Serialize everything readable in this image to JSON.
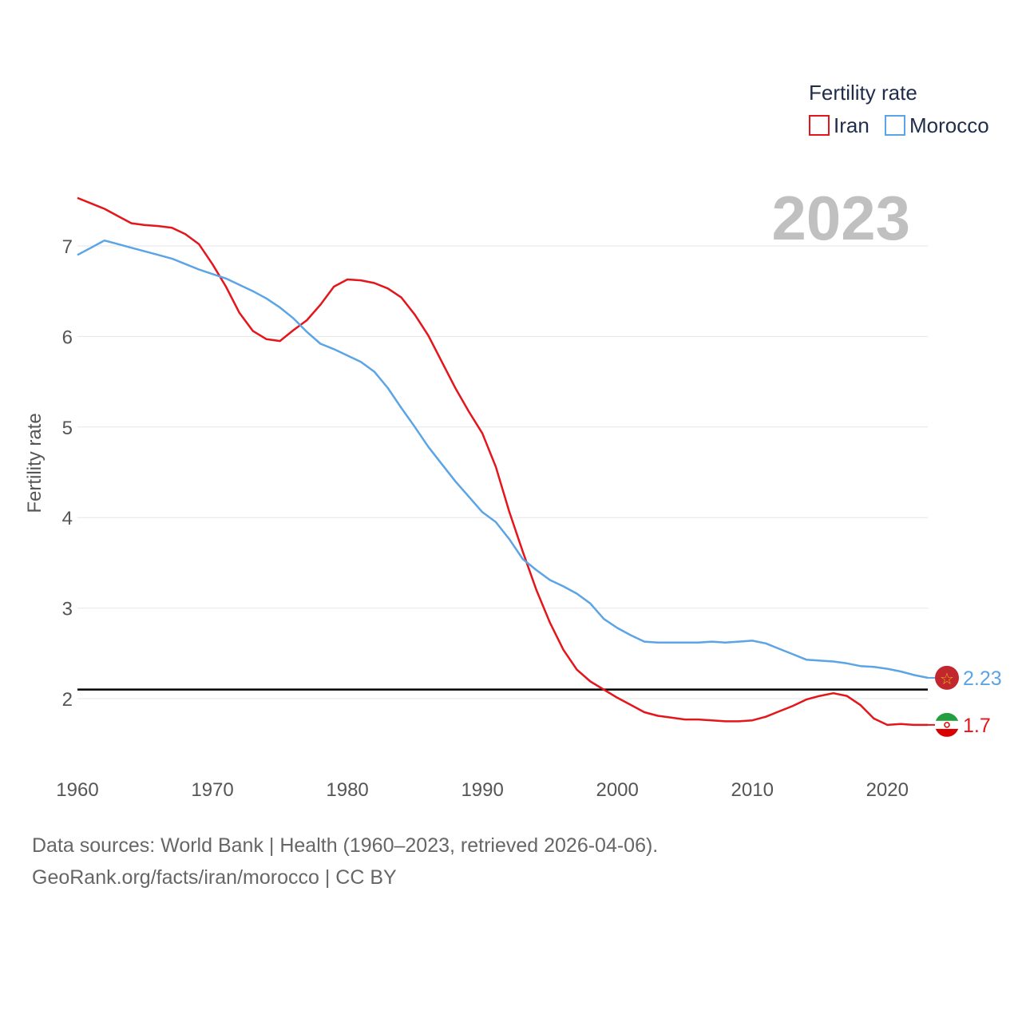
{
  "chart_data": {
    "type": "line",
    "title": "",
    "ylabel": "Fertility rate",
    "xlabel": "",
    "current_year": "2023",
    "xlim": [
      1960,
      2023
    ],
    "ylim": [
      1.3,
      7.6
    ],
    "x_ticks": [
      1960,
      1970,
      1980,
      1990,
      2000,
      2010,
      2020
    ],
    "y_ticks": [
      2,
      3,
      4,
      5,
      6,
      7
    ],
    "reference_line": 2.1,
    "legend": {
      "title": "Fertility rate",
      "position": "top-right"
    },
    "x": [
      1960,
      1961,
      1962,
      1963,
      1964,
      1965,
      1966,
      1967,
      1968,
      1969,
      1970,
      1971,
      1972,
      1973,
      1974,
      1975,
      1976,
      1977,
      1978,
      1979,
      1980,
      1981,
      1982,
      1983,
      1984,
      1985,
      1986,
      1987,
      1988,
      1989,
      1990,
      1991,
      1992,
      1993,
      1994,
      1995,
      1996,
      1997,
      1998,
      1999,
      2000,
      2001,
      2002,
      2003,
      2004,
      2005,
      2006,
      2007,
      2008,
      2009,
      2010,
      2011,
      2012,
      2013,
      2014,
      2015,
      2016,
      2017,
      2018,
      2019,
      2020,
      2021,
      2022,
      2023
    ],
    "series": [
      {
        "name": "Iran",
        "color": "#e4151b",
        "end_label": "1.7",
        "values": [
          7.53,
          7.47,
          7.41,
          7.33,
          7.25,
          7.23,
          7.22,
          7.2,
          7.13,
          7.02,
          6.8,
          6.55,
          6.26,
          6.06,
          5.97,
          5.95,
          6.07,
          6.18,
          6.35,
          6.55,
          6.63,
          6.62,
          6.59,
          6.53,
          6.43,
          6.24,
          6.01,
          5.72,
          5.43,
          5.17,
          4.93,
          4.56,
          4.06,
          3.62,
          3.2,
          2.84,
          2.54,
          2.32,
          2.19,
          2.1,
          2.01,
          1.93,
          1.85,
          1.81,
          1.79,
          1.77,
          1.77,
          1.76,
          1.75,
          1.75,
          1.76,
          1.8,
          1.86,
          1.92,
          1.99,
          2.03,
          2.06,
          2.03,
          1.93,
          1.78,
          1.71,
          1.72,
          1.71,
          1.71
        ]
      },
      {
        "name": "Morocco",
        "color": "#5ba4e5",
        "end_label": "2.23",
        "values": [
          6.9,
          6.98,
          7.06,
          7.02,
          6.98,
          6.94,
          6.9,
          6.86,
          6.8,
          6.74,
          6.69,
          6.64,
          6.57,
          6.5,
          6.42,
          6.32,
          6.2,
          6.05,
          5.92,
          5.86,
          5.79,
          5.72,
          5.61,
          5.43,
          5.21,
          5.0,
          4.78,
          4.59,
          4.4,
          4.23,
          4.06,
          3.95,
          3.76,
          3.54,
          3.42,
          3.31,
          3.24,
          3.16,
          3.05,
          2.88,
          2.78,
          2.7,
          2.63,
          2.62,
          2.62,
          2.62,
          2.62,
          2.63,
          2.62,
          2.63,
          2.64,
          2.61,
          2.55,
          2.49,
          2.43,
          2.42,
          2.41,
          2.39,
          2.36,
          2.35,
          2.33,
          2.3,
          2.26,
          2.23
        ]
      }
    ]
  },
  "footer": {
    "line1": "Data sources: World Bank | Health (1960–2023, retrieved 2026-04-06).",
    "line2": "GeoRank.org/facts/iran/morocco | CC BY"
  },
  "icons": {
    "iran_flag": "iran-flag-icon",
    "morocco_flag": "morocco-flag-icon",
    "morocco_star": "☆"
  }
}
